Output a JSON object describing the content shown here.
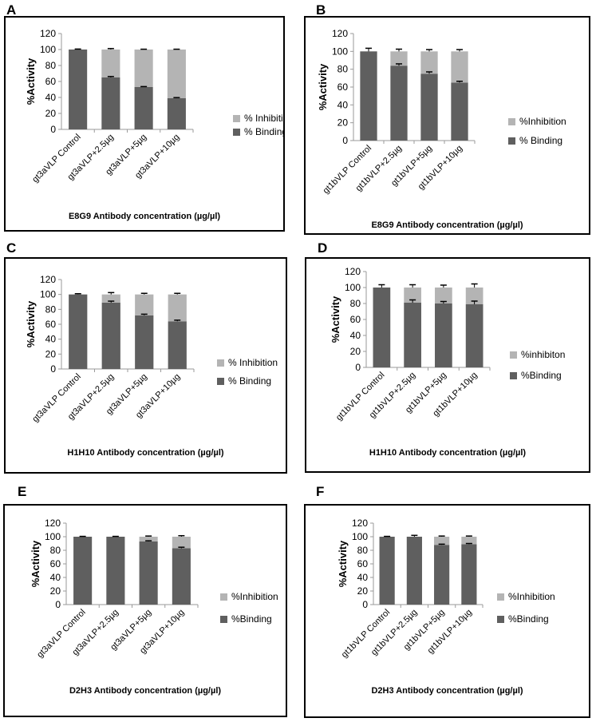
{
  "colors": {
    "binding": "#5f5f5f",
    "inhibition": "#b4b4b4",
    "axis": "#9a9a9a"
  },
  "chart_data": [
    {
      "panel": "A",
      "type": "bar",
      "stacked": true,
      "categories": [
        "gt3aVLP Control",
        "gt3aVLP+2.5µg",
        "gt3aVLP+5µg",
        "gt3aVLP+10µg"
      ],
      "series": [
        {
          "name": "% Binding",
          "values": [
            100,
            65,
            53,
            39
          ],
          "errors": [
            0.6,
            1.2,
            0.6,
            0.8
          ]
        },
        {
          "name": "% Inhibition",
          "values": [
            0,
            35,
            47,
            61
          ],
          "errors": [
            0,
            1.2,
            0.4,
            0.4
          ]
        }
      ],
      "ylabel": "%Activity",
      "xlabel": "E8G9 Antibody concentration (µg/µl)",
      "ylim": [
        0,
        120
      ],
      "yticks": [
        0,
        20,
        40,
        60,
        80,
        100,
        120
      ]
    },
    {
      "panel": "B",
      "type": "bar",
      "stacked": true,
      "categories": [
        "gt1bVLP Control",
        "gt1bVLP+2.5µg",
        "gt1bVLP+5µg",
        "gt1bVLP+10µg"
      ],
      "series": [
        {
          "name": "% Binding",
          "values": [
            100,
            84,
            75,
            65
          ],
          "errors": [
            3.5,
            2,
            2,
            1.5
          ]
        },
        {
          "name": "%Inhibition",
          "values": [
            0,
            16,
            25,
            35
          ],
          "errors": [
            0,
            2.5,
            2,
            2
          ]
        }
      ],
      "ylabel": "%Activity",
      "xlabel": "E8G9 Antibody concentration (µg/µl)",
      "ylim": [
        0,
        120
      ],
      "yticks": [
        0,
        20,
        40,
        60,
        80,
        100,
        120
      ]
    },
    {
      "panel": "C",
      "type": "bar",
      "stacked": true,
      "categories": [
        "gt3aVLP Control",
        "gt3aVLP+2.5µg",
        "gt3aVLP+5µg",
        "gt3aVLP+10µg"
      ],
      "series": [
        {
          "name": "% Binding",
          "values": [
            100,
            89,
            72,
            64
          ],
          "errors": [
            1,
            2,
            1.5,
            1.5
          ]
        },
        {
          "name": "% Inhibition",
          "values": [
            0,
            11,
            28,
            36
          ],
          "errors": [
            0,
            2.5,
            1.5,
            1.5
          ]
        }
      ],
      "ylabel": "%Activity",
      "xlabel": "H1H10 Antibody concentration (µg/µl)",
      "ylim": [
        0,
        120
      ],
      "yticks": [
        0,
        20,
        40,
        60,
        80,
        100,
        120
      ]
    },
    {
      "panel": "D",
      "type": "bar",
      "stacked": true,
      "categories": [
        "gt1bVLP Control",
        "gt1bVLP+2.5µg",
        "gt1bVLP+5µg",
        "gt1bVLP+10µg"
      ],
      "series": [
        {
          "name": "%Binding",
          "values": [
            100,
            81,
            80,
            79
          ],
          "errors": [
            3.5,
            3.5,
            2.5,
            4
          ]
        },
        {
          "name": "%inhibiton",
          "values": [
            0,
            19,
            20,
            21
          ],
          "errors": [
            0,
            3.5,
            3,
            4.5
          ]
        }
      ],
      "ylabel": "%Activity",
      "xlabel": "H1H10 Antibody concentration (µg/µl)",
      "ylim": [
        0,
        120
      ],
      "yticks": [
        0,
        20,
        40,
        60,
        80,
        100,
        120
      ]
    },
    {
      "panel": "E",
      "type": "bar",
      "stacked": true,
      "categories": [
        "gt3aVLP Control",
        "gt3aVLP+2.5µg",
        "gt3aVLP+5µg",
        "gt3aVLP+10µg"
      ],
      "series": [
        {
          "name": "%Binding",
          "values": [
            100,
            100,
            93,
            83
          ],
          "errors": [
            0.5,
            0.5,
            1,
            1.5
          ]
        },
        {
          "name": "%Inhibition",
          "values": [
            0,
            0,
            7,
            17
          ],
          "errors": [
            0,
            0,
            1,
            1.5
          ]
        }
      ],
      "ylabel": "%Activity",
      "xlabel": "D2H3 Antibody concentration (µg/µl)",
      "ylim": [
        0,
        120
      ],
      "yticks": [
        0,
        20,
        40,
        60,
        80,
        100,
        120
      ]
    },
    {
      "panel": "F",
      "type": "bar",
      "stacked": true,
      "categories": [
        "gt1bVLP Control",
        "gt1bVLP+2.5µg",
        "gt1bVLP+5µg",
        "gt1bVLP+10µg"
      ],
      "series": [
        {
          "name": "%Binding",
          "values": [
            100,
            100,
            88,
            89
          ],
          "errors": [
            0.5,
            2,
            1,
            1
          ]
        },
        {
          "name": "%Inhibition",
          "values": [
            0,
            0,
            12,
            11
          ],
          "errors": [
            0,
            1.5,
            1,
            1
          ]
        }
      ],
      "ylabel": "%Activity",
      "xlabel": "D2H3 Antibody concentration (µg/µl)",
      "ylim": [
        0,
        120
      ],
      "yticks": [
        0,
        20,
        40,
        60,
        80,
        100,
        120
      ]
    }
  ]
}
